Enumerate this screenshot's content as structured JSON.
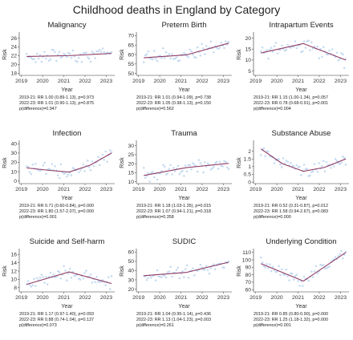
{
  "title": "Childhood deaths in England by Category",
  "colors": {
    "line": "#8e3a64",
    "points": "#b9d3ee",
    "axis": "#333333"
  },
  "chart_data": [
    {
      "type": "scatter",
      "title": "Malignancy",
      "xlabel": "Year",
      "ylabel": "Risk",
      "xticks": [
        "2019",
        "2020",
        "2021",
        "2022",
        "2023"
      ],
      "yticks": [
        18,
        20,
        22,
        24,
        26
      ],
      "ylim": [
        17.5,
        27
      ],
      "series": [
        {
          "x": [
            2019.25,
            2021.25,
            2023.25
          ],
          "y": [
            21.8,
            22.0,
            22.5
          ]
        }
      ],
      "stats": [
        "2019-21: RR 1.00 (0.89-1.13), p=0.973",
        "2022-23: RR 1.01 (0.90-1.13), p=0.875",
        "p(difference)=0.947"
      ]
    },
    {
      "type": "scatter",
      "title": "Preterm Birth",
      "xlabel": "Year",
      "ylabel": "Risk",
      "xticks": [
        "2019",
        "2020",
        "2021",
        "2022",
        "2023"
      ],
      "yticks": [
        50,
        55,
        60,
        65,
        70
      ],
      "ylim": [
        49,
        71
      ],
      "series": [
        {
          "x": [
            2019.25,
            2021.25,
            2023.25
          ],
          "y": [
            58.3,
            59.8,
            66.0
          ]
        }
      ],
      "stats": [
        "2019-21: RR 1.01 (0.94-1.09), p=0.738",
        "2022-23: RR 1.05 (0.98-1.13), p=0.150",
        "p(difference)=0.562"
      ]
    },
    {
      "type": "scatter",
      "title": "Intrapartum Events",
      "xlabel": "Year",
      "ylabel": "Risk",
      "xticks": [
        "2019",
        "2020",
        "2021",
        "2022",
        "2023"
      ],
      "yticks": [
        5,
        10,
        15,
        20
      ],
      "ylim": [
        3,
        22
      ],
      "series": [
        {
          "x": [
            2019.25,
            2021.25,
            2023.25
          ],
          "y": [
            13.2,
            17.5,
            10.0
          ]
        }
      ],
      "stats": [
        "2019-21: RR 1.15 (1.00-1.34), p=0.057",
        "2022-23: RR 0.78 (0.68-0.91), p=0.001",
        "p(difference)=0.004"
      ]
    },
    {
      "type": "scatter",
      "title": "Infection",
      "xlabel": "Year",
      "ylabel": "Risk",
      "xticks": [
        "2019",
        "2020",
        "2021",
        "2022",
        "2023"
      ],
      "yticks": [
        0,
        10,
        20,
        30,
        40
      ],
      "ylim": [
        -3,
        42
      ],
      "series": [
        {
          "x": [
            2019.25,
            2020.25,
            2021.25,
            2022.25,
            2023.25
          ],
          "y": [
            14.0,
            11.5,
            9.5,
            17.0,
            30.0
          ]
        }
      ],
      "stats": [
        "2019-21: RR 0.71 (0.60-0.84), p=0.000",
        "2022-23: RR 1.80 (1.57-2.07), p=0.000",
        "p(difference)=0.001"
      ]
    },
    {
      "type": "scatter",
      "title": "Trauma",
      "xlabel": "Year",
      "ylabel": "Risk",
      "xticks": [
        "2019",
        "2020",
        "2021",
        "2022",
        "2023"
      ],
      "yticks": [
        10,
        15,
        20,
        25,
        30
      ],
      "ylim": [
        9,
        32
      ],
      "series": [
        {
          "x": [
            2019.25,
            2021.25,
            2023.25
          ],
          "y": [
            13.5,
            17.8,
            20.2
          ]
        }
      ],
      "stats": [
        "2019-21: RR 1.18 (1.03-1.35), p=0.015",
        "2022-23: RR 1.07 (0.94-1.21), p=0.318",
        "p(difference)=0.358"
      ]
    },
    {
      "type": "scatter",
      "title": "Substance Abuse",
      "xlabel": "Year",
      "ylabel": "Risk",
      "xticks": [
        "2019",
        "2020",
        "2021",
        "2022",
        "2023"
      ],
      "yticks": [
        0,
        0.5,
        1,
        1.5,
        2
      ],
      "ylim": [
        -0.1,
        2.6
      ],
      "series": [
        {
          "x": [
            2019.25,
            2020.25,
            2021.25,
            2022.25,
            2023.25
          ],
          "y": [
            2.15,
            1.2,
            0.7,
            0.95,
            1.5
          ]
        }
      ],
      "stats": [
        "2019-21: RR 0.52 (0.31-0.87), p=0.012",
        "2022-23: RR 1.58 (0.94-2.67), p=0.083",
        "p(difference)=0.000"
      ]
    },
    {
      "type": "scatter",
      "title": "Suicide and Self-harm",
      "xlabel": "Year",
      "ylabel": "Risk",
      "xticks": [
        "2019",
        "2020",
        "2021",
        "2022",
        "2023"
      ],
      "yticks": [
        8,
        10,
        12,
        14,
        16
      ],
      "ylim": [
        7,
        17
      ],
      "series": [
        {
          "x": [
            2019.25,
            2021.25,
            2023.25
          ],
          "y": [
            8.8,
            11.8,
            9.0
          ]
        }
      ],
      "stats": [
        "2019-21: RR 1.17 (0.97-1.40), p=0.093",
        "2022-23: RR 0.88 (0.74-1.04), p=0.137",
        "p(difference)=0.073"
      ]
    },
    {
      "type": "scatter",
      "title": "SUDIC",
      "xlabel": "Year",
      "ylabel": "Risk",
      "xticks": [
        "2019",
        "2020",
        "2021",
        "2022",
        "2023"
      ],
      "yticks": [
        20,
        30,
        40,
        50,
        60
      ],
      "ylim": [
        17,
        62
      ],
      "series": [
        {
          "x": [
            2019.25,
            2021.25,
            2023.25
          ],
          "y": [
            34.5,
            38.0,
            49.0
          ]
        }
      ],
      "stats": [
        "2019-21: RR 1.04 (0.95-1.14), p=0.436",
        "2022-23: RR 1.13 (1.04-1.23), p=0.003",
        "p(difference)=0.261"
      ]
    },
    {
      "type": "scatter",
      "title": "Underlying Condition",
      "xlabel": "Year",
      "ylabel": "Risk",
      "xticks": [
        "2019",
        "2020",
        "2021",
        "2022",
        "2023"
      ],
      "yticks": [
        60,
        70,
        80,
        90,
        100,
        110
      ],
      "ylim": [
        57,
        113
      ],
      "series": [
        {
          "x": [
            2019.25,
            2021.25,
            2023.25
          ],
          "y": [
            95.0,
            71.5,
            110.0
          ]
        }
      ],
      "stats": [
        "2019-21: RR 0.85 (0.80-0.90), p=0.000",
        "2022-23: RR 1.25 (1.18-1.32), p=0.000",
        "p(difference)=0.001"
      ]
    }
  ]
}
